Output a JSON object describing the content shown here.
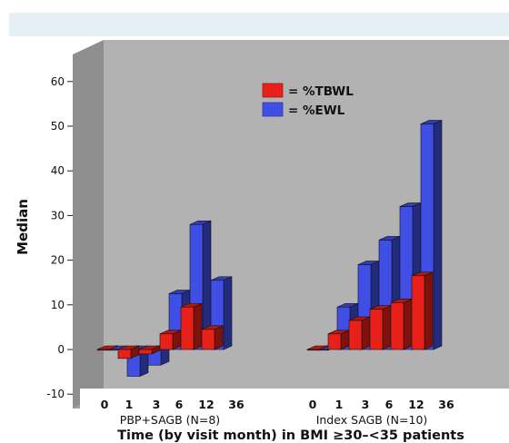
{
  "chart_data": {
    "type": "bar",
    "title": "",
    "ylabel": "Median",
    "xlabel": "Time (by visit month) in BMI ≥30–<35 patients",
    "ylim": [
      -10,
      60
    ],
    "yticks": [
      -10,
      0,
      10,
      20,
      30,
      40,
      50,
      60
    ],
    "grid": false,
    "legend_position": "top-center",
    "style": "3d",
    "groups": [
      {
        "name": "PBP+SAGB (N=8)",
        "categories": [
          "0",
          "1",
          "3",
          "6",
          "12",
          "36"
        ],
        "series": [
          {
            "name": "%TBWL",
            "color": "#e8201a",
            "values": [
              0,
              -2,
              -1,
              3.5,
              9.5,
              4.5
            ]
          },
          {
            "name": "%EWL",
            "color": "#3f4fe6",
            "values": [
              0,
              -6,
              -3.5,
              12.5,
              28,
              15.5
            ]
          }
        ]
      },
      {
        "name": "Index SAGB (N=10)",
        "categories": [
          "0",
          "1",
          "3",
          "6",
          "12",
          "36"
        ],
        "series": [
          {
            "name": "%TBWL",
            "color": "#e8201a",
            "values": [
              0,
              3.5,
              6.5,
              9,
              10.5,
              16.5
            ]
          },
          {
            "name": "%EWL",
            "color": "#3f4fe6",
            "values": [
              0,
              9.5,
              19,
              24.5,
              32,
              50.5
            ]
          }
        ]
      }
    ],
    "legend": [
      {
        "label": "= %TBWL",
        "color": "#e8201a"
      },
      {
        "label": "= %EWL",
        "color": "#3f4fe6"
      }
    ]
  }
}
